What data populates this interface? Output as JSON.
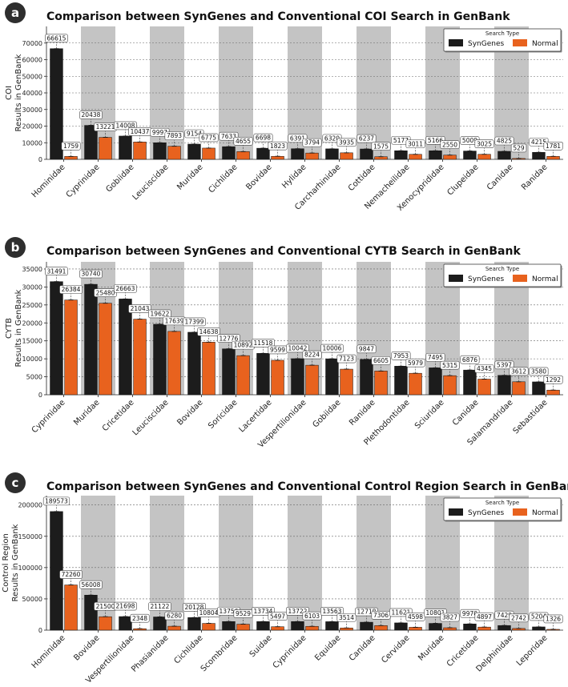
{
  "colors": {
    "syngenes": "#1c1c1c",
    "normal": "#e8621e",
    "band": "#c4c4c4",
    "letter_bg": "#2e2e2e"
  },
  "legend": {
    "title": "Search Type",
    "items": [
      "SynGenes",
      "Normal"
    ]
  },
  "chart_data": [
    {
      "type": "bar",
      "letter": "a",
      "title": "Comparison between SynGenes and Conventional COI Search in GenBank",
      "ylabel_lines": [
        "COI",
        "Results in GenBank"
      ],
      "xlabel": "",
      "ylim": [
        0,
        80000
      ],
      "yticks": [
        0,
        10000,
        20000,
        30000,
        40000,
        50000,
        60000,
        70000
      ],
      "categories": [
        "Hominidae",
        "Cyprinidae",
        "Gobiidae",
        "Leuciscidae",
        "Muridae",
        "Cichlidae",
        "Bovidae",
        "Hylidae",
        "Carcharhinidae",
        "Cottidae",
        "Nemacheilidae",
        "Xenocyprididae",
        "Clupeidae",
        "Canidae",
        "Ranidae"
      ],
      "series": [
        {
          "name": "SynGenes",
          "values": [
            66615,
            20438,
            14008,
            9997,
            9154,
            7633,
            6698,
            6391,
            6320,
            6237,
            5177,
            5166,
            5009,
            4825,
            4215
          ]
        },
        {
          "name": "Normal",
          "values": [
            1759,
            13221,
            10437,
            7893,
            6775,
            4655,
            1823,
            3794,
            3935,
            1575,
            3011,
            2550,
            3025,
            529,
            1781
          ]
        }
      ]
    },
    {
      "type": "bar",
      "letter": "b",
      "title": "Comparison between SynGenes and Conventional CYTB Search in GenBank",
      "ylabel_lines": [
        "CYTB",
        "Results in GenBank"
      ],
      "xlabel": "",
      "ylim": [
        0,
        37000
      ],
      "yticks": [
        0,
        5000,
        10000,
        15000,
        20000,
        25000,
        30000,
        35000
      ],
      "categories": [
        "Cyprinidae",
        "Muridae",
        "Cricetidae",
        "Leuciscidae",
        "Bovidae",
        "Soricidae",
        "Lacertidae",
        "Vespertilionidae",
        "Gobiidae",
        "Ranidae",
        "Plethodontidae",
        "Sciuridae",
        "Canidae",
        "Salamandridae",
        "Sebastidae"
      ],
      "series": [
        {
          "name": "SynGenes",
          "values": [
            31491,
            30740,
            26663,
            19622,
            17399,
            12776,
            11518,
            10042,
            10006,
            9847,
            7953,
            7495,
            6876,
            5397,
            3580
          ]
        },
        {
          "name": "Normal",
          "values": [
            26384,
            25480,
            21043,
            17639,
            14638,
            10892,
            9599,
            8224,
            7123,
            6605,
            5979,
            5315,
            4345,
            3612,
            1292
          ]
        }
      ]
    },
    {
      "type": "bar",
      "letter": "c",
      "title": "Comparison between SynGenes and Conventional Control Region Search in GenBank",
      "ylabel_lines": [
        "Control Region",
        "Results in GenBank"
      ],
      "xlabel": "",
      "ylim": [
        0,
        215000
      ],
      "yticks": [
        0,
        50000,
        100000,
        150000,
        200000
      ],
      "categories": [
        "Hominidae",
        "Bovidae",
        "Vespertilionidae",
        "Phasianidae",
        "Cichlidae",
        "Scombridae",
        "Suidae",
        "Cyprinidae",
        "Equidae",
        "Canidae",
        "Cervidae",
        "Muridae",
        "Cricetidae",
        "Delphinidae",
        "Leporidae"
      ],
      "series": [
        {
          "name": "SynGenes",
          "values": [
            189573,
            56008,
            21698,
            21122,
            20128,
            13756,
            13734,
            13722,
            13563,
            12718,
            11621,
            10801,
            9970,
            7429,
            5204
          ]
        },
        {
          "name": "Normal",
          "values": [
            72260,
            21500,
            2348,
            6280,
            10804,
            9529,
            5497,
            6103,
            3514,
            7306,
            4598,
            3827,
            4897,
            2742,
            1326
          ]
        }
      ]
    }
  ]
}
